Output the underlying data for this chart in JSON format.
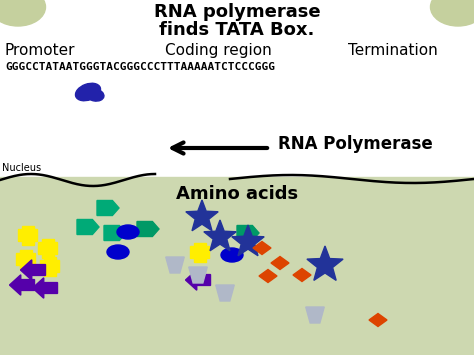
{
  "title_line1": "RNA polymerase",
  "title_line2": "finds TATA Box.",
  "label_promoter": "Promoter",
  "label_coding": "Coding region",
  "label_termination": "Termination",
  "dna_sequence": "GGGCCTATAATGGGTACGGGCCCTTTAAAAATCTCCCGGG",
  "nucleus_label": "Nucleus",
  "rna_pol_label": "RNA Polymerase",
  "amino_acids_label": "Amino acids",
  "bg_white": "#ffffff",
  "bg_green": "#cdd8b0",
  "corner_green": "#c5d09e",
  "title_fontsize": 13,
  "label_fontsize": 11,
  "seq_fontsize": 8.0,
  "rna_pol_fontsize": 12,
  "nucleus_fontsize": 7,
  "amino_fontsize": 13,
  "green1": "#00aa77",
  "green2": "#009966",
  "yellow": "#ffee00",
  "blue_ellipse": "#0000cc",
  "blue_star": "#223399",
  "purple_arrow": "#5500aa",
  "orange_diamond": "#dd4400",
  "gray_trap": "#b0b8c8",
  "rna_blob_color": "#2222aa"
}
